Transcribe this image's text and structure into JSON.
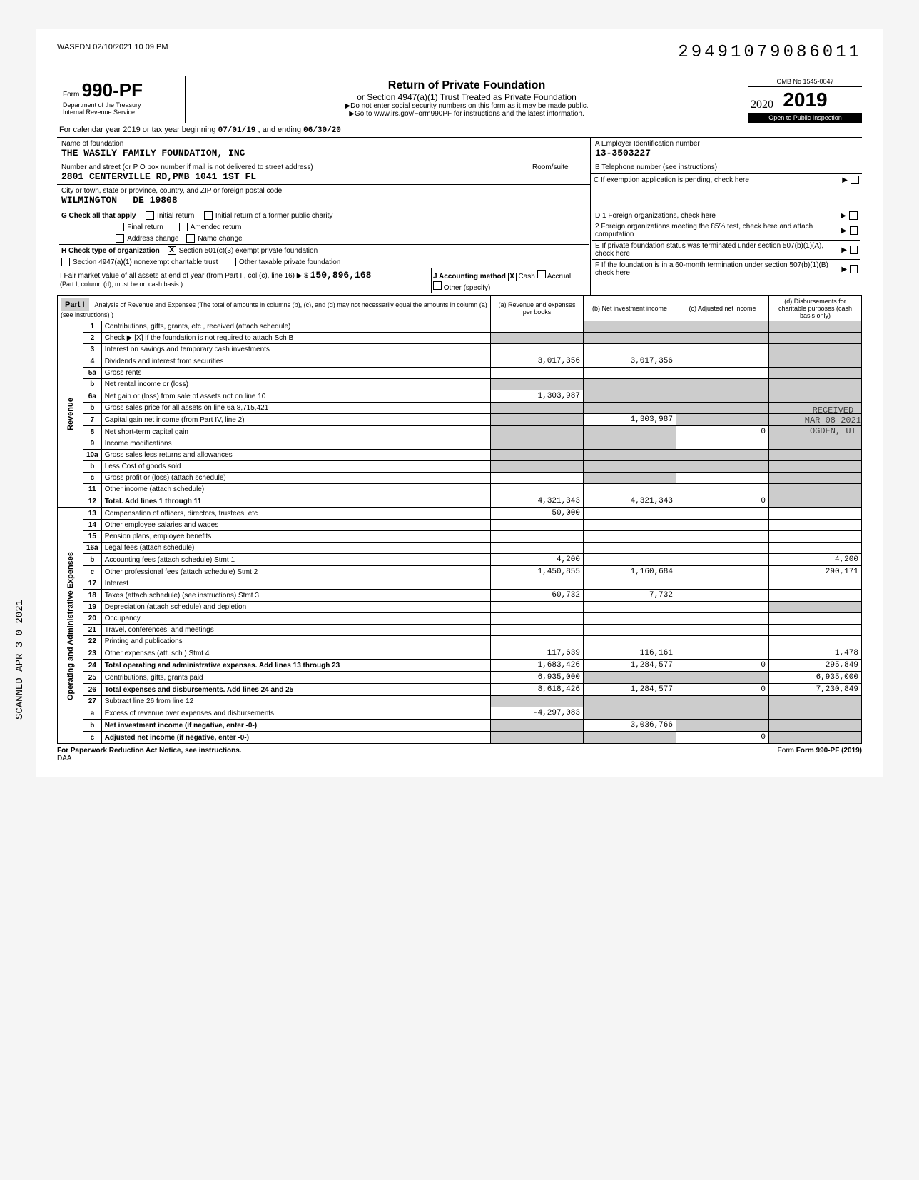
{
  "meta": {
    "print_stamp": "WASFDN 02/10/2021 10 09 PM",
    "barcode": "29491079086011",
    "side_stamp": "SCANNED APR 3 0 2021"
  },
  "header": {
    "form_label_prefix": "Form",
    "form_number": "990-PF",
    "dept": "Department of the Treasury",
    "irs": "Internal Revenue Service",
    "title": "Return of Private Foundation",
    "subtitle": "or Section 4947(a)(1) Trust Treated as Private Foundation",
    "warn": "▶Do not enter social security numbers on this form as it may be made public.",
    "goto": "▶Go to www.irs.gov/Form990PF for instructions and the latest information.",
    "omb": "OMB No 1545-0047",
    "year": "2019",
    "inspect": "Open to Public Inspection",
    "handwritten_year": "2020"
  },
  "period": {
    "label_pre": "For calendar year 2019 or tax year beginning",
    "begin": "07/01/19",
    "mid": ", and ending",
    "end": "06/30/20"
  },
  "entity": {
    "name_label": "Name of foundation",
    "name": "THE WASILY FAMILY FOUNDATION, INC",
    "addr_label": "Number and street (or P O box number if mail is not delivered to street address)",
    "addr": "2801 CENTERVILLE RD,PMB 1041 1ST FL",
    "room_label": "Room/suite",
    "city_label": "City or town, state or province, country, and ZIP or foreign postal code",
    "city": "WILMINGTON",
    "state_zip": "DE 19808",
    "ein_label": "A  Employer Identification number",
    "ein": "13-3503227",
    "phone_label": "B  Telephone number (see instructions)",
    "c_label": "C  If exemption application is pending, check here"
  },
  "checks": {
    "g_label": "G Check all that apply",
    "g1": "Initial return",
    "g2": "Initial return of a former public charity",
    "g3": "Final return",
    "g4": "Amended return",
    "g5": "Address change",
    "g6": "Name change",
    "h_label": "H Check type of organization",
    "h1": "Section 501(c)(3) exempt private foundation",
    "h2": "Section 4947(a)(1) nonexempt charitable trust",
    "h3": "Other taxable private foundation",
    "i_label": "I Fair market value of all assets at end of year (from Part II, col (c), line 16) ▶ $",
    "i_value": "150,896,168",
    "i_note": "(Part I, column (d), must be on cash basis )",
    "j_label": "J Accounting method",
    "j1": "Cash",
    "j2": "Accrual",
    "j3": "Other (specify)",
    "d1": "D 1 Foreign organizations, check here",
    "d2": "2 Foreign organizations meeting the 85% test, check here and attach computation",
    "e": "E If private foundation status was terminated under section 507(b)(1)(A), check here",
    "f": "F If the foundation is in a 60-month termination under section 507(b)(1)(B) check here"
  },
  "part1": {
    "header_label": "Part I",
    "header_desc": "Analysis of Revenue and Expenses (The total of amounts in columns (b), (c), and (d) may not necessarily equal the amounts in column (a) (see instructions) )",
    "col_a": "(a) Revenue and expenses per books",
    "col_b": "(b) Net investment income",
    "col_c": "(c) Adjusted net income",
    "col_d": "(d) Disbursements for charitable purposes (cash basis only)",
    "revenue_label": "Revenue",
    "expenses_label": "Operating and Administrative Expenses"
  },
  "rows": [
    {
      "n": "1",
      "desc": "Contributions, gifts, grants, etc , received (attach schedule)",
      "a": "",
      "b": "shaded",
      "c": "shaded",
      "d": "shaded"
    },
    {
      "n": "2",
      "desc": "Check ▶ [X] if the foundation is not required to attach Sch B",
      "a": "shaded",
      "b": "shaded",
      "c": "shaded",
      "d": "shaded"
    },
    {
      "n": "3",
      "desc": "Interest on savings and temporary cash investments",
      "a": "",
      "b": "",
      "c": "",
      "d": "shaded"
    },
    {
      "n": "4",
      "desc": "Dividends and interest from securities",
      "a": "3,017,356",
      "b": "3,017,356",
      "c": "",
      "d": "shaded"
    },
    {
      "n": "5a",
      "desc": "Gross rents",
      "a": "",
      "b": "",
      "c": "",
      "d": "shaded"
    },
    {
      "n": "b",
      "desc": "Net rental income or (loss)",
      "a": "shaded",
      "b": "shaded",
      "c": "shaded",
      "d": "shaded"
    },
    {
      "n": "6a",
      "desc": "Net gain or (loss) from sale of assets not on line 10",
      "a": "1,303,987",
      "b": "shaded",
      "c": "shaded",
      "d": "shaded"
    },
    {
      "n": "b",
      "desc": "Gross sales price for all assets on line 6a        8,715,421",
      "a": "shaded",
      "b": "shaded",
      "c": "shaded",
      "d": "shaded"
    },
    {
      "n": "7",
      "desc": "Capital gain net income (from Part IV, line 2)",
      "a": "shaded",
      "b": "1,303,987",
      "c": "shaded",
      "d": "shaded"
    },
    {
      "n": "8",
      "desc": "Net short-term capital gain",
      "a": "shaded",
      "b": "shaded",
      "c": "0",
      "d": "shaded"
    },
    {
      "n": "9",
      "desc": "Income modifications",
      "a": "shaded",
      "b": "shaded",
      "c": "",
      "d": "shaded"
    },
    {
      "n": "10a",
      "desc": "Gross sales less returns and allowances",
      "a": "shaded",
      "b": "shaded",
      "c": "shaded",
      "d": "shaded"
    },
    {
      "n": "b",
      "desc": "Less Cost of goods sold",
      "a": "shaded",
      "b": "shaded",
      "c": "shaded",
      "d": "shaded"
    },
    {
      "n": "c",
      "desc": "Gross profit or (loss) (attach schedule)",
      "a": "",
      "b": "shaded",
      "c": "",
      "d": "shaded"
    },
    {
      "n": "11",
      "desc": "Other income (attach schedule)",
      "a": "",
      "b": "",
      "c": "",
      "d": "shaded"
    },
    {
      "n": "12",
      "desc": "Total. Add lines 1 through 11",
      "a": "4,321,343",
      "b": "4,321,343",
      "c": "0",
      "d": "shaded",
      "bold": true
    },
    {
      "n": "13",
      "desc": "Compensation of officers, directors, trustees, etc",
      "a": "50,000",
      "b": "",
      "c": "",
      "d": ""
    },
    {
      "n": "14",
      "desc": "Other employee salaries and wages",
      "a": "",
      "b": "",
      "c": "",
      "d": ""
    },
    {
      "n": "15",
      "desc": "Pension plans, employee benefits",
      "a": "",
      "b": "",
      "c": "",
      "d": ""
    },
    {
      "n": "16a",
      "desc": "Legal fees (attach schedule)",
      "a": "",
      "b": "",
      "c": "",
      "d": ""
    },
    {
      "n": "b",
      "desc": "Accounting fees (attach schedule)      Stmt 1",
      "a": "4,200",
      "b": "",
      "c": "",
      "d": "4,200"
    },
    {
      "n": "c",
      "desc": "Other professional fees (attach schedule)    Stmt 2",
      "a": "1,450,855",
      "b": "1,160,684",
      "c": "",
      "d": "290,171"
    },
    {
      "n": "17",
      "desc": "Interest",
      "a": "",
      "b": "",
      "c": "",
      "d": ""
    },
    {
      "n": "18",
      "desc": "Taxes (attach schedule) (see instructions)    Stmt 3",
      "a": "60,732",
      "b": "7,732",
      "c": "",
      "d": ""
    },
    {
      "n": "19",
      "desc": "Depreciation (attach schedule) and depletion",
      "a": "",
      "b": "",
      "c": "",
      "d": "shaded"
    },
    {
      "n": "20",
      "desc": "Occupancy",
      "a": "",
      "b": "",
      "c": "",
      "d": ""
    },
    {
      "n": "21",
      "desc": "Travel, conferences, and meetings",
      "a": "",
      "b": "",
      "c": "",
      "d": ""
    },
    {
      "n": "22",
      "desc": "Printing and publications",
      "a": "",
      "b": "",
      "c": "",
      "d": ""
    },
    {
      "n": "23",
      "desc": "Other expenses (att. sch )                    Stmt 4",
      "a": "117,639",
      "b": "116,161",
      "c": "",
      "d": "1,478"
    },
    {
      "n": "24",
      "desc": "Total operating and administrative expenses. Add lines 13 through 23",
      "a": "1,683,426",
      "b": "1,284,577",
      "c": "0",
      "d": "295,849",
      "bold": true
    },
    {
      "n": "25",
      "desc": "Contributions, gifts, grants paid",
      "a": "6,935,000",
      "b": "shaded",
      "c": "shaded",
      "d": "6,935,000"
    },
    {
      "n": "26",
      "desc": "Total expenses and disbursements. Add lines 24 and 25",
      "a": "8,618,426",
      "b": "1,284,577",
      "c": "0",
      "d": "7,230,849",
      "bold": true
    },
    {
      "n": "27",
      "desc": "Subtract line 26 from line 12",
      "a": "shaded",
      "b": "shaded",
      "c": "shaded",
      "d": "shaded"
    },
    {
      "n": "a",
      "desc": "Excess of revenue over expenses and disbursements",
      "a": "-4,297,083",
      "b": "shaded",
      "c": "shaded",
      "d": "shaded"
    },
    {
      "n": "b",
      "desc": "Net investment income (if negative, enter -0-)",
      "a": "shaded",
      "b": "3,036,766",
      "c": "shaded",
      "d": "shaded",
      "bold": true
    },
    {
      "n": "c",
      "desc": "Adjusted net income (if negative, enter -0-)",
      "a": "shaded",
      "b": "shaded",
      "c": "0",
      "d": "shaded",
      "bold": true
    }
  ],
  "footer": {
    "left": "For Paperwork Reduction Act Notice, see instructions.",
    "mid": "DAA",
    "right": "Form 990-PF (2019)"
  },
  "stamps": {
    "received": "RECEIVED",
    "mar": "MAR 08 2021",
    "ogden": "OGDEN, UT"
  }
}
